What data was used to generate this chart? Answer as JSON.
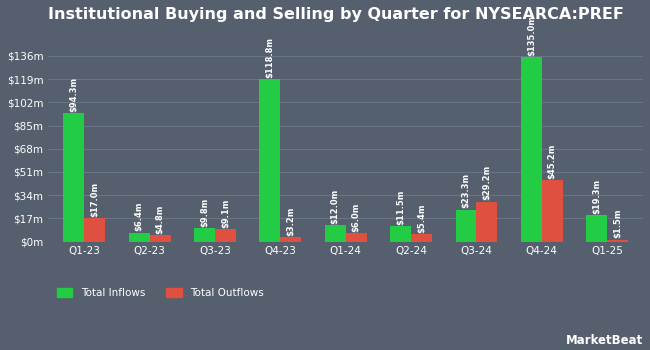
{
  "title": "Institutional Buying and Selling by Quarter for NYSEARCA:PREF",
  "quarters": [
    "Q1-23",
    "Q2-23",
    "Q3-23",
    "Q4-23",
    "Q1-24",
    "Q2-24",
    "Q3-24",
    "Q4-24",
    "Q1-25"
  ],
  "inflows": [
    94.3,
    6.4,
    9.8,
    118.8,
    12.0,
    11.5,
    23.3,
    135.0,
    19.3
  ],
  "outflows": [
    17.0,
    4.8,
    9.1,
    3.2,
    6.0,
    5.4,
    29.2,
    45.2,
    1.5
  ],
  "inflow_labels": [
    "$94.3m",
    "$6.4m",
    "$9.8m",
    "$118.8m",
    "$12.0m",
    "$11.5m",
    "$23.3m",
    "$135.0m",
    "$19.3m"
  ],
  "outflow_labels": [
    "$17.0m",
    "$4.8m",
    "$9.1m",
    "$3.2m",
    "$6.0m",
    "$5.4m",
    "$29.2m",
    "$45.2m",
    "$1.5m"
  ],
  "yticks": [
    0,
    17,
    34,
    51,
    68,
    85,
    102,
    119,
    136
  ],
  "ytick_labels": [
    "$0m",
    "$17m",
    "$34m",
    "$51m",
    "$68m",
    "$85m",
    "$102m",
    "$119m",
    "$136m"
  ],
  "ylim": [
    0,
    155
  ],
  "bar_width": 0.32,
  "inflow_color": "#22cc44",
  "outflow_color": "#e05040",
  "background_color": "#555f6e",
  "text_color": "#ffffff",
  "grid_color": "#6b7a8d",
  "title_fontsize": 11.5,
  "label_fontsize": 6.0,
  "tick_fontsize": 7.5,
  "legend_fontsize": 7.5
}
